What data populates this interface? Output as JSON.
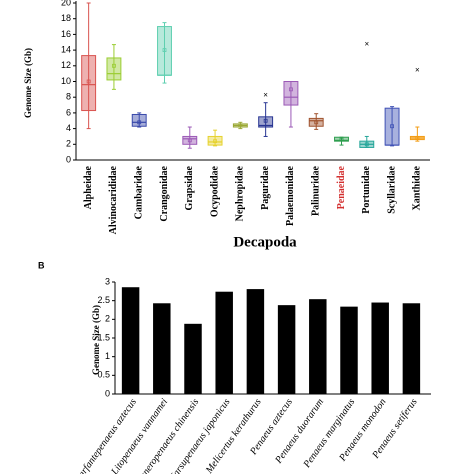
{
  "chart_data": [
    {
      "type": "box",
      "ylabel": "Genome Size (Gb)",
      "xlabel": "Decapoda",
      "categories": [
        "Alpheidae",
        "Alvinocarididae",
        "Cambaridae",
        "Crangonidae",
        "Grapsidae",
        "Ocypodidae",
        "Nephropidae",
        "Paguridae",
        "Palaemonidae",
        "Palinuridae",
        "Penaeidae",
        "Portunidae",
        "Scyllaridae",
        "Xanthidae"
      ],
      "boxes": [
        {
          "min": 4,
          "q1": 6.3,
          "median": 9.6,
          "q3": 13.3,
          "max": 20,
          "mean": 10,
          "outliers": [],
          "color": "#d9534f"
        },
        {
          "min": 9,
          "q1": 10.2,
          "median": 11,
          "q3": 13,
          "max": 14.7,
          "mean": 12,
          "outliers": [],
          "color": "#9acd32"
        },
        {
          "min": 4.2,
          "q1": 4.3,
          "median": 4.8,
          "q3": 5.8,
          "max": 6,
          "mean": 4.8,
          "outliers": [],
          "color": "#3949ab"
        },
        {
          "min": 9.8,
          "q1": 10.8,
          "median": 10.8,
          "q3": 17,
          "max": 17.5,
          "mean": 14,
          "outliers": [],
          "color": "#5fcfb0"
        },
        {
          "min": 1.5,
          "q1": 2,
          "median": 2.7,
          "q3": 3,
          "max": 4.2,
          "mean": 2.5,
          "outliers": [],
          "color": "#9b59b6"
        },
        {
          "min": 1.8,
          "q1": 1.9,
          "median": 2.3,
          "q3": 3,
          "max": 3.8,
          "mean": 2.4,
          "outliers": [],
          "color": "#e6d22e"
        },
        {
          "min": 4,
          "q1": 4.2,
          "median": 4.4,
          "q3": 4.6,
          "max": 4.8,
          "mean": 4.4,
          "outliers": [],
          "color": "#9aa834"
        },
        {
          "min": 3,
          "q1": 4.2,
          "median": 4.4,
          "q3": 5.5,
          "max": 7.3,
          "mean": 5,
          "outliers": [
            8.2
          ],
          "color": "#283593"
        },
        {
          "min": 4.2,
          "q1": 7,
          "median": 8,
          "q3": 10,
          "max": 10,
          "mean": 9,
          "outliers": [],
          "color": "#9b59b6"
        },
        {
          "min": 3.9,
          "q1": 4.3,
          "median": 5,
          "q3": 5.3,
          "max": 5.9,
          "mean": 4.8,
          "outliers": [],
          "color": "#a0522d"
        },
        {
          "min": 1.9,
          "q1": 2.4,
          "median": 2.5,
          "q3": 2.9,
          "max": 2.9,
          "mean": 2.6,
          "outliers": [],
          "color": "#2e9e4f"
        },
        {
          "min": 1.6,
          "q1": 1.6,
          "median": 2,
          "q3": 2.4,
          "max": 3,
          "mean": 2,
          "outliers": [
            14.7
          ],
          "color": "#26a69a"
        },
        {
          "min": 1.8,
          "q1": 1.9,
          "median": 1.9,
          "q3": 6.6,
          "max": 6.8,
          "mean": 4.3,
          "outliers": [],
          "color": "#3f51b5"
        },
        {
          "min": 2.4,
          "q1": 2.6,
          "median": 2.8,
          "q3": 3,
          "max": 4.2,
          "mean": 2.8,
          "outliers": [
            11.4
          ],
          "color": "#f39c12"
        }
      ],
      "highlight_index": 10,
      "highlight_color": "#d32f2f",
      "ylim": [
        0,
        20
      ],
      "yticks": [
        0,
        2,
        4,
        6,
        8,
        10,
        12,
        14,
        16,
        18,
        20
      ]
    },
    {
      "type": "bar",
      "panel_label": "B",
      "ylabel": "Genome Size (Gb)",
      "categories": [
        "Farfantepenaeus aztecus",
        "Litopenaeus vannamei",
        "Fenneropenaeus chinensis",
        "Marsupenaeus japonicus",
        "Melicertus kerathurus",
        "Penaeus aztecus",
        "Penaeus duorarum",
        "Penaeus marginatus",
        "Penaeus monodon",
        "Penaeus setiferus"
      ],
      "values": [
        2.86,
        2.43,
        1.88,
        2.74,
        2.81,
        2.38,
        2.54,
        2.34,
        2.45,
        2.43
      ],
      "color": "#000000",
      "ylim": [
        0,
        3
      ],
      "yticks": [
        0,
        0.5,
        1,
        1.5,
        2,
        2.5,
        3
      ]
    }
  ]
}
